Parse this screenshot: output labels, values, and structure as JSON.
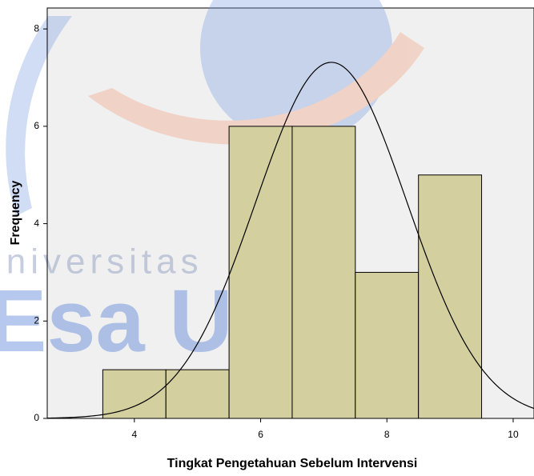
{
  "chart_data": {
    "type": "histogram",
    "xlabel": "Tingkat Pengetahuan Sebelum Intervensi",
    "ylabel": "Frequency",
    "bins": [
      3.5,
      4.5,
      5.5,
      6.5,
      7.5,
      8.5,
      9.5
    ],
    "values": [
      1,
      1,
      6,
      6,
      3,
      5
    ],
    "color": "#d4cf9f",
    "xlim": [
      2.62,
      10.33
    ],
    "xticks": [
      4,
      6,
      8,
      10
    ],
    "ylim": [
      0,
      8.43
    ],
    "yticks": [
      0,
      2,
      4,
      6,
      8
    ],
    "normal_curve": {
      "mean": 7.12,
      "std": 1.2,
      "n": 22
    },
    "watermark": [
      "Universitas",
      "Esa Unggul"
    ]
  }
}
